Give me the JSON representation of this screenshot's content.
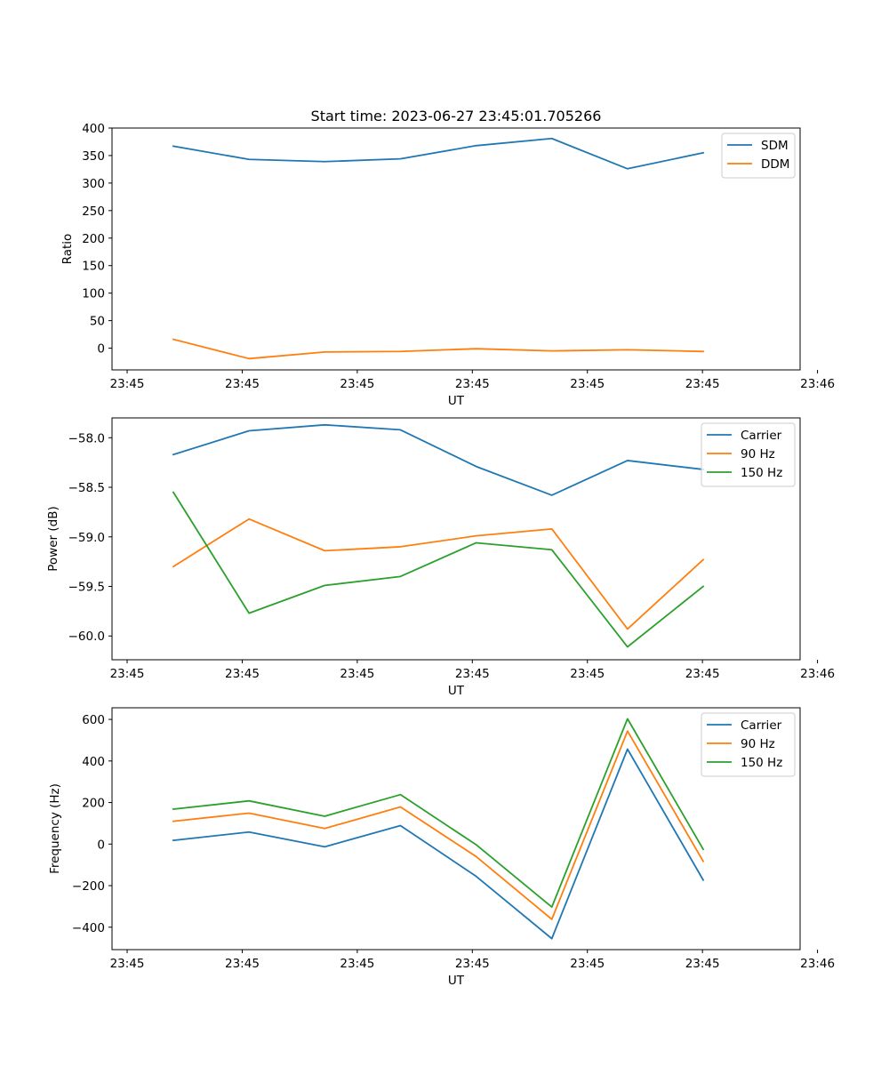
{
  "figure": {
    "title": "Start time: 2023-06-27 23:45:01.705266"
  },
  "chart_data": [
    {
      "type": "line",
      "title": "Start time: 2023-06-27 23:45:01.705266",
      "xlabel": "UT",
      "ylabel": "Ratio",
      "x_tick_labels": [
        "23:45",
        "23:45",
        "23:45",
        "23:45",
        "23:45",
        "23:45",
        "23:46"
      ],
      "x": [
        1,
        2,
        3,
        4,
        5,
        6,
        7,
        8
      ],
      "xlim": [
        0.19,
        9.28
      ],
      "ylim": [
        -39.5,
        400
      ],
      "y_ticks": [
        0,
        50,
        100,
        150,
        200,
        250,
        300,
        350,
        400
      ],
      "legend": "top-right",
      "series": [
        {
          "name": "SDM",
          "color": "#1f77b4",
          "values": [
            367,
            343,
            339,
            344,
            368,
            381,
            326,
            355
          ]
        },
        {
          "name": "DDM",
          "color": "#ff7f0e",
          "values": [
            16,
            -19,
            -7,
            -6,
            -1,
            -5,
            -3,
            -6
          ]
        }
      ]
    },
    {
      "type": "line",
      "xlabel": "UT",
      "ylabel": "Power (dB)",
      "x_tick_labels": [
        "23:45",
        "23:45",
        "23:45",
        "23:45",
        "23:45",
        "23:45",
        "23:46"
      ],
      "x": [
        1,
        2,
        3,
        4,
        5,
        6,
        7,
        8
      ],
      "xlim": [
        0.19,
        9.28
      ],
      "ylim": [
        -60.24,
        -57.8
      ],
      "y_ticks": [
        -58.0,
        -58.5,
        -59.0,
        -59.5,
        -60.0
      ],
      "legend": "top-right",
      "series": [
        {
          "name": "Carrier",
          "color": "#1f77b4",
          "values": [
            -58.17,
            -57.93,
            -57.87,
            -57.92,
            -58.29,
            -58.58,
            -58.23,
            -58.32
          ]
        },
        {
          "name": "90 Hz",
          "color": "#ff7f0e",
          "values": [
            -59.3,
            -58.82,
            -59.14,
            -59.1,
            -58.99,
            -58.92,
            -59.93,
            -59.23
          ]
        },
        {
          "name": "150 Hz",
          "color": "#2ca02c",
          "values": [
            -58.55,
            -59.77,
            -59.49,
            -59.4,
            -59.06,
            -59.13,
            -60.11,
            -59.5
          ]
        }
      ]
    },
    {
      "type": "line",
      "xlabel": "UT",
      "ylabel": "Frequency (Hz)",
      "x_tick_labels": [
        "23:45",
        "23:45",
        "23:45",
        "23:45",
        "23:45",
        "23:45",
        "23:46"
      ],
      "x": [
        1,
        2,
        3,
        4,
        5,
        6,
        7,
        8
      ],
      "xlim": [
        0.19,
        9.28
      ],
      "ylim": [
        -508,
        656
      ],
      "y_ticks": [
        -400,
        -200,
        0,
        200,
        400,
        600
      ],
      "legend": "top-right",
      "series": [
        {
          "name": "Carrier",
          "color": "#1f77b4",
          "values": [
            18,
            58,
            -13,
            89,
            -155,
            -455,
            457,
            -173
          ]
        },
        {
          "name": "90 Hz",
          "color": "#ff7f0e",
          "values": [
            110,
            149,
            75,
            179,
            -60,
            -362,
            544,
            -83
          ]
        },
        {
          "name": "150 Hz",
          "color": "#2ca02c",
          "values": [
            168,
            208,
            134,
            238,
            -3,
            -303,
            603,
            -25
          ]
        }
      ]
    }
  ]
}
